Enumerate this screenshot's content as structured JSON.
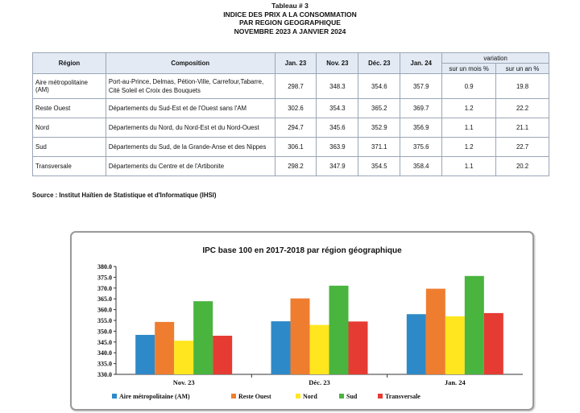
{
  "header": {
    "line1": "Tableau # 3",
    "line2": "INDICE DES PRIX A LA CONSOMMATION",
    "line3": "PAR REGION GEOGRAPHIQUE",
    "line4": "NOVEMBRE 2023 A JANVIER 2024"
  },
  "table": {
    "headers": {
      "region": "Région",
      "composition": "Composition",
      "jan23": "Jan. 23",
      "nov23": "Nov. 23",
      "dec23": "Déc. 23",
      "jan24": "Jan. 24",
      "variation": "variation",
      "mois": "sur un mois %",
      "an": "sur un an %"
    },
    "rows": [
      {
        "region": "Aire métropolitaine (AM)",
        "composition": "Port-au-Prince, Delmas, Pétion-Ville, Carrefour,Tabarre, Cité Soleil et Croix des Bouquets",
        "jan23": "298.7",
        "nov23": "348.3",
        "dec23": "354.6",
        "jan24": "357.9",
        "mois": "0.9",
        "an": "19.8"
      },
      {
        "region": "Reste Ouest",
        "composition": "Départements du Sud-Est et de l'Ouest sans l'AM",
        "jan23": "302.6",
        "nov23": "354.3",
        "dec23": "365.2",
        "jan24": "369.7",
        "mois": "1.2",
        "an": "22.2"
      },
      {
        "region": "Nord",
        "composition": "Départements du Nord, du Nord-Est et du Nord-Ouest",
        "jan23": "294.7",
        "nov23": "345.6",
        "dec23": "352.9",
        "jan24": "356.9",
        "mois": "1.1",
        "an": "21.1"
      },
      {
        "region": "Sud",
        "composition": "Départements du Sud, de la Grande-Anse et des Nippes",
        "jan23": "306.1",
        "nov23": "363.9",
        "dec23": "371.1",
        "jan24": "375.6",
        "mois": "1.2",
        "an": "22.7"
      },
      {
        "region": "Transversale",
        "composition": "Départements du Centre et de l'Artibonite",
        "jan23": "298.2",
        "nov23": "347.9",
        "dec23": "354.5",
        "jan24": "358.4",
        "mois": "1.1",
        "an": "20.2"
      }
    ]
  },
  "source": "Source : Institut Haïtien de Statistique et d'Informatique (IHSI)",
  "chart_data": {
    "type": "bar",
    "title": "IPC base 100 en 2017-2018 par région géographique",
    "categories": [
      "Nov. 23",
      "Déc. 23",
      "Jan. 24"
    ],
    "series": [
      {
        "name": "Aire métropolitaine (AM)",
        "values": [
          348.3,
          354.6,
          357.9
        ],
        "color": "#2e89c8"
      },
      {
        "name": "Reste Ouest",
        "values": [
          354.3,
          365.2,
          369.7
        ],
        "color": "#ef7d2f"
      },
      {
        "name": "Nord",
        "values": [
          345.6,
          352.9,
          356.9
        ],
        "color": "#ffe61e"
      },
      {
        "name": "Sud",
        "values": [
          363.9,
          371.1,
          375.6
        ],
        "color": "#49b43e"
      },
      {
        "name": "Transversale",
        "values": [
          347.9,
          354.5,
          358.4
        ],
        "color": "#e63b33"
      }
    ],
    "ylim": [
      330,
      380
    ],
    "yticks": [
      "330.0",
      "335.0",
      "340.0",
      "345.0",
      "350.0",
      "355.0",
      "360.0",
      "365.0",
      "370.0",
      "375.0",
      "380.0"
    ],
    "xlabel": "",
    "ylabel": "",
    "grid": false,
    "legend": "bottom"
  }
}
